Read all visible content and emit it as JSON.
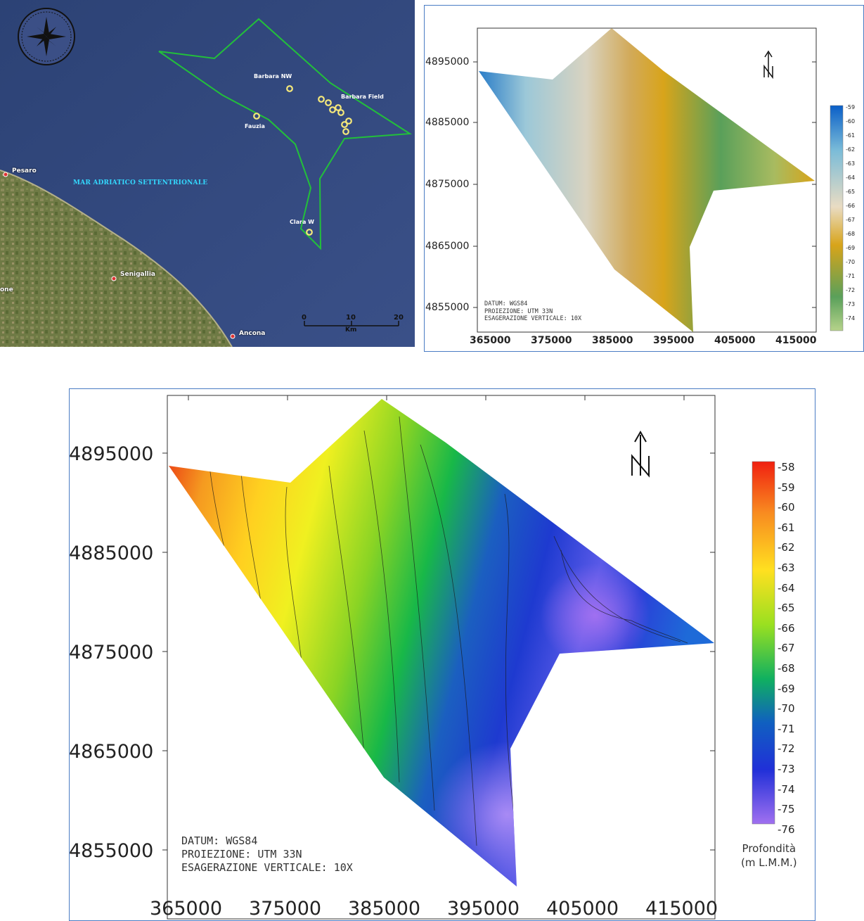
{
  "map_panel": {
    "sea_label": "MAR ADRIATICO SETTENTRIONALE",
    "wells": [
      {
        "name": "Barbara NW"
      },
      {
        "name": "Barbara Field"
      },
      {
        "name": "Fauzia"
      },
      {
        "name": "Clara W"
      }
    ],
    "cities": [
      "Pesaro",
      "Senigallia",
      "Ancona",
      "one"
    ],
    "scale": {
      "ticks": [
        "0",
        "10",
        "20"
      ],
      "unit": "Km"
    },
    "colors": {
      "sea": "#3b4f86",
      "survey_outline": "#22c03a",
      "well_marker": "#f5e87a"
    }
  },
  "panel_small": {
    "y_ticks": [
      "4895000",
      "4885000",
      "4875000",
      "4865000",
      "4855000"
    ],
    "x_ticks": [
      "365000",
      "375000",
      "385000",
      "395000",
      "405000",
      "415000"
    ],
    "datum_lines": [
      "DATUM: WGS84",
      "PROIEZIONE: UTM 33N",
      "ESAGERAZIONE VERTICALE: 10X"
    ],
    "north_symbol": "N",
    "colorbar_labels": [
      "-59",
      "-60",
      "-61",
      "-62",
      "-63",
      "-64",
      "-65",
      "-66",
      "-67",
      "-68",
      "-69",
      "-70",
      "-71",
      "-72",
      "-73",
      "-74"
    ]
  },
  "panel_large": {
    "y_ticks": [
      "4895000",
      "4885000",
      "4875000",
      "4865000",
      "4855000"
    ],
    "x_ticks": [
      "365000",
      "375000",
      "385000",
      "395000",
      "405000",
      "415000"
    ],
    "datum_lines": [
      "DATUM: WGS84",
      "PROIEZIONE: UTM 33N",
      "ESAGERAZIONE VERTICALE: 10X"
    ],
    "north_symbol": "N",
    "colorbar_labels": [
      "-58",
      "-59",
      "-60",
      "-61",
      "-62",
      "-63",
      "-64",
      "-65",
      "-66",
      "-67",
      "-68",
      "-69",
      "-70",
      "-71",
      "-72",
      "-73",
      "-74",
      "-75",
      "-76"
    ],
    "colorbar_title": "Profondità\n(m L.M.M.)"
  },
  "chart_data": [
    {
      "type": "heatmap",
      "panel": "small",
      "quantity": "depth (m L.M.M.)",
      "x_ticks": [
        365000,
        375000,
        385000,
        395000,
        405000,
        415000
      ],
      "y_ticks": [
        4855000,
        4865000,
        4875000,
        4885000,
        4895000
      ],
      "xlim": [
        363000,
        418000
      ],
      "ylim": [
        4850000,
        4901000
      ],
      "color_range": [
        -74,
        -59
      ],
      "colormap": [
        "#1f6fc2",
        "#9cc8d8",
        "#e9dcc3",
        "#d8a41a",
        "#5aa05a",
        "#b6d38a"
      ],
      "survey_polygon": [
        [
          363000,
          4894000
        ],
        [
          375000,
          4892000
        ],
        [
          384000,
          4900000
        ],
        [
          393000,
          4892000
        ],
        [
          418000,
          4876000
        ],
        [
          401000,
          4874000
        ],
        [
          397000,
          4866000
        ],
        [
          397500,
          4851000
        ],
        [
          385000,
          4862000
        ]
      ]
    },
    {
      "type": "heatmap",
      "panel": "large",
      "quantity": "depth (m L.M.M.)",
      "x_ticks": [
        365000,
        375000,
        385000,
        395000,
        405000,
        415000
      ],
      "y_ticks": [
        4855000,
        4865000,
        4875000,
        4885000,
        4895000
      ],
      "xlim": [
        363000,
        418000
      ],
      "ylim": [
        4850000,
        4901000
      ],
      "color_range": [
        -76,
        -58
      ],
      "colormap": [
        "#e82010",
        "#ffd020",
        "#f8f020",
        "#7ad420",
        "#10b84a",
        "#1e3ad0",
        "#a070f0"
      ],
      "survey_polygon": [
        [
          363000,
          4894000
        ],
        [
          375000,
          4892000
        ],
        [
          384000,
          4900000
        ],
        [
          393000,
          4892000
        ],
        [
          418000,
          4876000
        ],
        [
          401000,
          4874000
        ],
        [
          397000,
          4866000
        ],
        [
          397500,
          4851000
        ],
        [
          385000,
          4862000
        ]
      ]
    }
  ]
}
